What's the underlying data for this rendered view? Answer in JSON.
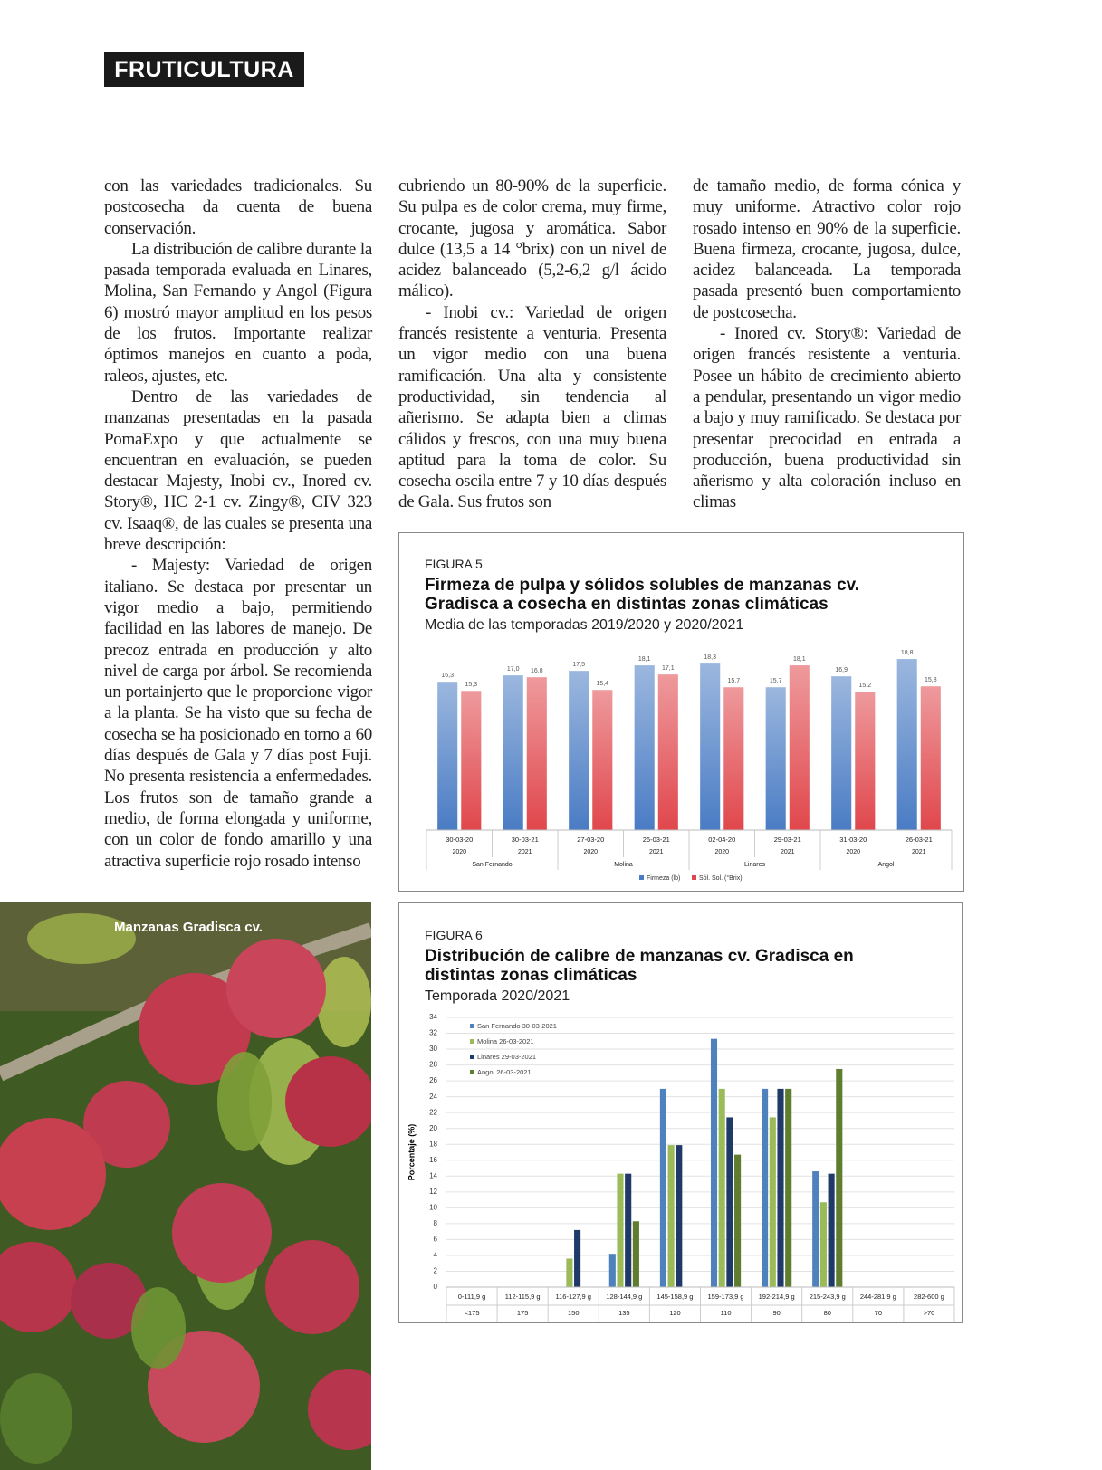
{
  "header": {
    "section": "FRUTICULTURA"
  },
  "columns": [
    [
      "con las variedades tradicionales. Su postcosecha da cuenta de buena conservación.",
      "La distribución de calibre durante la pasada temporada evaluada en Linares, Molina, San Fernando y Angol (Figura 6) mostró mayor amplitud en los pesos de los frutos. Importante realizar óptimos manejos en cuanto a poda, raleos, ajustes, etc.",
      "Dentro de las variedades de manzanas presentadas en la pasada PomaExpo y que actualmente se encuentran en evaluación, se pueden destacar Majesty, Inobi cv., Inored cv. Story®, HC 2-1 cv. Zingy®, CIV 323 cv. Isaaq®, de las cuales se presenta una breve descripción:",
      "- Majesty: Variedad de origen italiano. Se destaca por presentar un vigor medio a bajo, permitiendo facilidad en las labores de manejo. De precoz entrada en producción y alto nivel de carga por árbol. Se recomienda un portainjerto que le proporcione vigor a la planta. Se ha visto que su fecha de cosecha se ha posicionado en torno a 60 días después de Gala y 7 días post Fuji. No presenta resistencia a enfermedades. Los frutos son de tamaño grande a medio, de forma elongada y uniforme, con un color de fondo amarillo y una atractiva superficie rojo rosado intenso"
    ],
    [
      "cubriendo un 80-90% de la superficie. Su pulpa es de color crema, muy firme, crocante, jugosa y aromática. Sabor dulce (13,5 a 14 °brix) con un nivel de acidez balanceado (5,2-6,2 g/l ácido málico).",
      "- Inobi cv.: Variedad de origen francés resistente a venturia. Presenta un vigor medio con una buena ramificación. Una alta y consistente productividad, sin tendencia al añerismo. Se adapta bien a climas cálidos y frescos, con una muy buena aptitud para la toma de color. Su cosecha oscila entre 7 y 10 días después de Gala. Sus frutos son"
    ],
    [
      "de tamaño medio, de forma cónica y muy uniforme. Atractivo color rojo rosado intenso en 90% de la superficie. Buena firmeza, crocante, jugosa, dulce, acidez balanceada. La temporada pasada presentó buen comportamiento de postcosecha.",
      "- Inored cv. Story®: Variedad de origen francés resistente a venturia. Posee un hábito de crecimiento abierto a pendular, presentando un vigor medio a bajo y muy ramificado. Se destaca por presentar precocidad en entrada a producción, buena productividad sin añerismo y alta coloración incluso en climas"
    ]
  ],
  "photo_caption": "Manzanas Gradisca cv.",
  "chart_data": [
    {
      "type": "bar",
      "label": "FIGURA 5",
      "title": "Firmeza de pulpa y sólidos solubles de manzanas cv. Gradisca a cosecha en distintas zonas climáticas",
      "subtitle": "Media de las temporadas 2019/2020 y 2020/2021",
      "categories": [
        "30-03-20",
        "30-03-21",
        "27-03-20",
        "26-03-21",
        "02-04-20",
        "29-03-21",
        "31-03-20",
        "26-03-21"
      ],
      "years": [
        "2020",
        "2021",
        "2020",
        "2021",
        "2020",
        "2021",
        "2020",
        "2021"
      ],
      "groups": [
        "San Fernando",
        "Molina",
        "Linares",
        "Angol"
      ],
      "series": [
        {
          "name": "Firmeza (lb)",
          "color": "#4a7cc4",
          "values": [
            16.3,
            17.0,
            17.5,
            18.1,
            18.3,
            15.7,
            16.9,
            18.8
          ],
          "value_labels": [
            "16,3",
            "17,0",
            "17,5",
            "18,1",
            "18,3",
            "15,7",
            "16,9",
            "18,8"
          ]
        },
        {
          "name": "Sól. Sol. (°Brix)",
          "color": "#e0474c",
          "values": [
            15.3,
            16.8,
            15.4,
            17.1,
            15.7,
            18.1,
            15.2,
            15.8
          ],
          "value_labels": [
            "15,3",
            "16,8",
            "15,4",
            "17,1",
            "15,7",
            "18,1",
            "15,2",
            "15,8"
          ]
        }
      ],
      "ylim": [
        0,
        20
      ],
      "legend": "bottom"
    },
    {
      "type": "bar",
      "label": "FIGURA 6",
      "title": "Distribución de calibre de manzanas cv. Gradisca en distintas zonas climáticas",
      "subtitle": "Temporada 2020/2021",
      "y_label": "Porcentaje (%)",
      "categories": [
        "0-111,9 g",
        "112-115,9 g",
        "116-127,9 g",
        "128-144,9 g",
        "145-158,9 g",
        "159-173,9 g",
        "192-214,9 g",
        "215-243,9 g",
        "244-281,9 g",
        "282-600 g"
      ],
      "categories_sub": [
        "<175",
        "175",
        "150",
        "135",
        "120",
        "110",
        "90",
        "80",
        "70",
        ">70"
      ],
      "series": [
        {
          "name": "San Fernando 30-03-2021",
          "color": "#4f81bd",
          "values": [
            0,
            0,
            0,
            4.2,
            25.0,
            31.3,
            25.0,
            14.6,
            0,
            0
          ]
        },
        {
          "name": "Molina 26-03-2021",
          "color": "#9bbb59",
          "values": [
            0,
            0,
            3.6,
            14.3,
            17.9,
            25.0,
            21.4,
            10.7,
            0,
            0
          ]
        },
        {
          "name": "Linares 29-03-2021",
          "color": "#1f3a68",
          "values": [
            0,
            0,
            7.2,
            14.3,
            17.9,
            21.4,
            25.0,
            14.3,
            0,
            0
          ]
        },
        {
          "name": "Angol 26-03-2021",
          "color": "#5f7d2e",
          "values": [
            0,
            0,
            0,
            8.3,
            0,
            16.7,
            25.0,
            27.5,
            0,
            0
          ]
        }
      ],
      "ylim": [
        0,
        34
      ],
      "yticks": [
        0,
        2,
        4,
        6,
        8,
        10,
        12,
        14,
        16,
        18,
        20,
        22,
        24,
        26,
        28,
        30,
        32,
        34
      ],
      "grid": true,
      "legend": "top-left"
    }
  ]
}
